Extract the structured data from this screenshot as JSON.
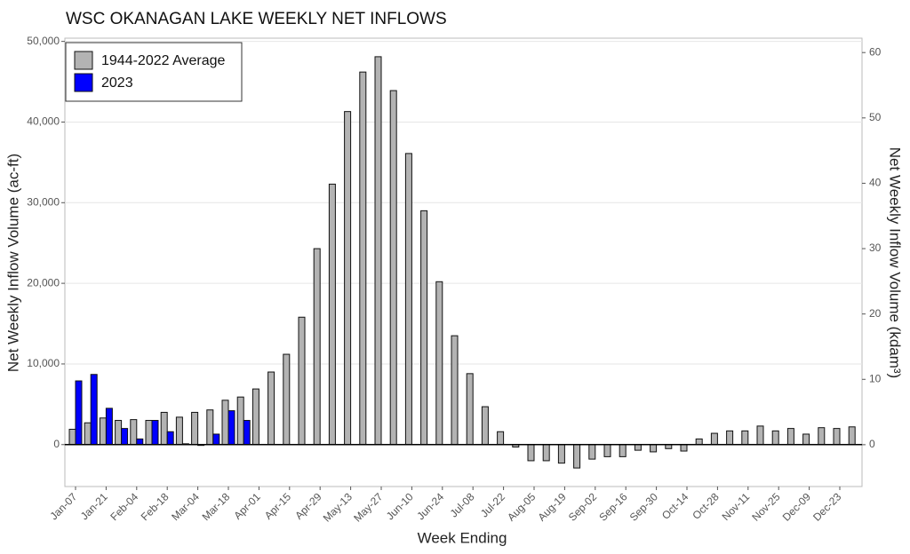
{
  "chart_data": {
    "type": "bar",
    "title": "WSC OKANAGAN LAKE WEEKLY NET INFLOWS",
    "x_label": "Week Ending",
    "y_label": "Net Weekly Inflow Volume (ac-ft)",
    "y2_label": "Net Weekly Inflow Volume (kdam³)",
    "categories": [
      "Jan-07",
      null,
      "Jan-21",
      null,
      "Feb-04",
      null,
      "Feb-18",
      null,
      "Mar-04",
      null,
      "Mar-18",
      null,
      "Apr-01",
      null,
      "Apr-15",
      null,
      "Apr-29",
      null,
      "May-13",
      null,
      "May-27",
      null,
      "Jun-10",
      null,
      "Jun-24",
      null,
      "Jul-08",
      null,
      "Jul-22",
      null,
      "Aug-05",
      null,
      "Aug-19",
      null,
      "Sep-02",
      null,
      "Sep-16",
      null,
      "Sep-30",
      null,
      "Oct-14",
      null,
      "Oct-28",
      null,
      "Nov-11",
      null,
      "Nov-25",
      null,
      "Dec-09",
      null,
      "Dec-23",
      null
    ],
    "series": [
      {
        "name": "1944-2022 Average",
        "color": "#b3b3b3",
        "values": [
          1900,
          2700,
          3300,
          3000,
          3100,
          3000,
          4000,
          3400,
          4000,
          4300,
          5500,
          5900,
          6900,
          9000,
          11200,
          15800,
          24300,
          32300,
          41300,
          46200,
          48100,
          43900,
          36100,
          29000,
          20200,
          13500,
          8800,
          4700,
          1600,
          -300,
          -2000,
          -2000,
          -2300,
          -2900,
          -1800,
          -1500,
          -1500,
          -700,
          -900,
          -500,
          -800,
          700,
          1400,
          1700,
          1700,
          2300,
          1700,
          2000,
          1300,
          2100,
          2000,
          2200
        ]
      },
      {
        "name": "2023",
        "color": "#0000ff",
        "values": [
          7900,
          8700,
          4500,
          2000,
          700,
          3000,
          1600,
          100,
          -100,
          1300,
          4200,
          3000,
          null,
          null,
          null,
          null,
          null,
          null,
          null,
          null,
          null,
          null,
          null,
          null,
          null,
          null,
          null,
          null,
          null,
          null,
          null,
          null,
          null,
          null,
          null,
          null,
          null,
          null,
          null,
          null,
          null,
          null,
          null,
          null,
          null,
          null,
          null,
          null,
          null,
          null,
          null,
          null
        ]
      }
    ],
    "ylim": [
      -5200,
      50400
    ],
    "yticks": [
      0,
      {
        "value": 10000,
        "label": "10,000"
      },
      {
        "value": 20000,
        "label": "20,000"
      },
      {
        "value": 30000,
        "label": "30,000"
      },
      {
        "value": 40000,
        "label": "40,000"
      },
      {
        "value": 50000,
        "label": "50,000"
      }
    ],
    "y2lim": [
      -6.4,
      62.2
    ],
    "y2ticks": [
      0,
      10,
      20,
      30,
      40,
      50,
      60
    ],
    "grid": true,
    "legend": "top-left"
  }
}
